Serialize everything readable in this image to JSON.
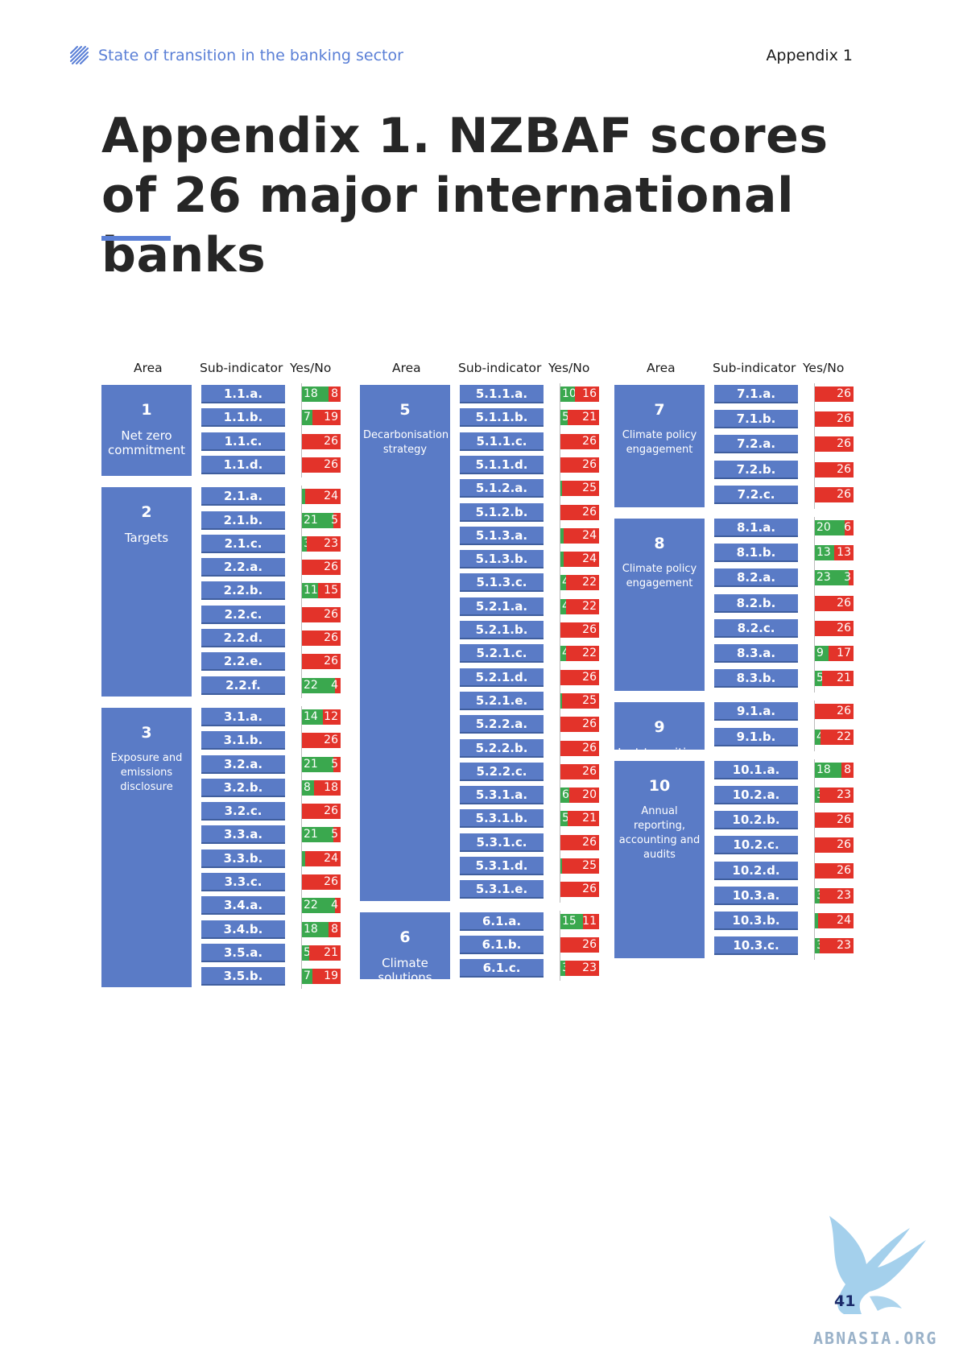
{
  "header": {
    "section_title": "State of transition in the banking sector",
    "appendix_label": "Appendix 1"
  },
  "title": "Appendix 1. NZBAF scores of 26 major international banks",
  "columns_heads": {
    "area": "Area",
    "sub": "Sub-indicator",
    "yn": "Yes/No"
  },
  "legend_colors": {
    "yes": "#3aa84e",
    "no": "#e3332a",
    "area": "#5a7bc6"
  },
  "areas": [
    {
      "num": "1",
      "name": "Net zero commitment",
      "rows": [
        {
          "id": "1.1.a.",
          "yes": 18,
          "no": 8
        },
        {
          "id": "1.1.b.",
          "yes": 7,
          "no": 19
        },
        {
          "id": "1.1.c.",
          "yes": 0,
          "no": 26
        },
        {
          "id": "1.1.d.",
          "yes": 0,
          "no": 26
        }
      ]
    },
    {
      "num": "2",
      "name": "Targets",
      "rows": [
        {
          "id": "2.1.a.",
          "yes": 2,
          "no": 24
        },
        {
          "id": "2.1.b.",
          "yes": 21,
          "no": 5
        },
        {
          "id": "2.1.c.",
          "yes": 3,
          "no": 23
        },
        {
          "id": "2.2.a.",
          "yes": 0,
          "no": 26
        },
        {
          "id": "2.2.b.",
          "yes": 11,
          "no": 15
        },
        {
          "id": "2.2.c.",
          "yes": 0,
          "no": 26
        },
        {
          "id": "2.2.d.",
          "yes": 0,
          "no": 26
        },
        {
          "id": "2.2.e.",
          "yes": 0,
          "no": 26
        },
        {
          "id": "2.2.f.",
          "yes": 22,
          "no": 4
        }
      ]
    },
    {
      "num": "3",
      "name": "Exposure and emissions disclosure",
      "rows": [
        {
          "id": "3.1.a.",
          "yes": 14,
          "no": 12
        },
        {
          "id": "3.1.b.",
          "yes": 0,
          "no": 26
        },
        {
          "id": "3.2.a.",
          "yes": 21,
          "no": 5
        },
        {
          "id": "3.2.b.",
          "yes": 8,
          "no": 18
        },
        {
          "id": "3.2.c.",
          "yes": 0,
          "no": 26
        },
        {
          "id": "3.3.a.",
          "yes": 21,
          "no": 5
        },
        {
          "id": "3.3.b.",
          "yes": 2,
          "no": 24
        },
        {
          "id": "3.3.c.",
          "yes": 0,
          "no": 26
        },
        {
          "id": "3.4.a.",
          "yes": 22,
          "no": 4
        },
        {
          "id": "3.4.b.",
          "yes": 18,
          "no": 8
        },
        {
          "id": "3.5.a.",
          "yes": 5,
          "no": 21
        },
        {
          "id": "3.5.b.",
          "yes": 7,
          "no": 19
        }
      ]
    },
    {
      "num": "5",
      "name": "Decarbonisation strategy",
      "rows": [
        {
          "id": "5.1.1.a.",
          "yes": 10,
          "no": 16
        },
        {
          "id": "5.1.1.b.",
          "yes": 5,
          "no": 21
        },
        {
          "id": "5.1.1.c.",
          "yes": 0,
          "no": 26
        },
        {
          "id": "5.1.1.d.",
          "yes": 0,
          "no": 26
        },
        {
          "id": "5.1.2.a.",
          "yes": 1,
          "no": 25
        },
        {
          "id": "5.1.2.b.",
          "yes": 0,
          "no": 26
        },
        {
          "id": "5.1.3.a.",
          "yes": 2,
          "no": 24
        },
        {
          "id": "5.1.3.b.",
          "yes": 2,
          "no": 24
        },
        {
          "id": "5.1.3.c.",
          "yes": 4,
          "no": 22
        },
        {
          "id": "5.2.1.a.",
          "yes": 4,
          "no": 22
        },
        {
          "id": "5.2.1.b.",
          "yes": 0,
          "no": 26
        },
        {
          "id": "5.2.1.c.",
          "yes": 4,
          "no": 22
        },
        {
          "id": "5.2.1.d.",
          "yes": 0,
          "no": 26
        },
        {
          "id": "5.2.1.e.",
          "yes": 1,
          "no": 25
        },
        {
          "id": "5.2.2.a.",
          "yes": 0,
          "no": 26
        },
        {
          "id": "5.2.2.b.",
          "yes": 0,
          "no": 26
        },
        {
          "id": "5.2.2.c.",
          "yes": 0,
          "no": 26
        },
        {
          "id": "5.3.1.a.",
          "yes": 6,
          "no": 20
        },
        {
          "id": "5.3.1.b.",
          "yes": 5,
          "no": 21
        },
        {
          "id": "5.3.1.c.",
          "yes": 0,
          "no": 26
        },
        {
          "id": "5.3.1.d.",
          "yes": 1,
          "no": 25
        },
        {
          "id": "5.3.1.e.",
          "yes": 0,
          "no": 26
        }
      ]
    },
    {
      "num": "6",
      "name": "Climate solutions",
      "rows": [
        {
          "id": "6.1.a.",
          "yes": 15,
          "no": 11
        },
        {
          "id": "6.1.b.",
          "yes": 0,
          "no": 26
        },
        {
          "id": "6.1.c.",
          "yes": 3,
          "no": 23
        }
      ]
    },
    {
      "num": "7",
      "name": "Climate policy engagement",
      "rows": [
        {
          "id": "7.1.a.",
          "yes": 0,
          "no": 26
        },
        {
          "id": "7.1.b.",
          "yes": 0,
          "no": 26
        },
        {
          "id": "7.2.a.",
          "yes": 0,
          "no": 26
        },
        {
          "id": "7.2.b.",
          "yes": 0,
          "no": 26
        },
        {
          "id": "7.2.c.",
          "yes": 0,
          "no": 26
        }
      ]
    },
    {
      "num": "8",
      "name": "Climate policy engagement",
      "rows": [
        {
          "id": "8.1.a.",
          "yes": 20,
          "no": 6
        },
        {
          "id": "8.1.b.",
          "yes": 13,
          "no": 13
        },
        {
          "id": "8.2.a.",
          "yes": 23,
          "no": 3
        },
        {
          "id": "8.2.b.",
          "yes": 0,
          "no": 26
        },
        {
          "id": "8.2.c.",
          "yes": 0,
          "no": 26
        },
        {
          "id": "8.3.a.",
          "yes": 9,
          "no": 17
        },
        {
          "id": "8.3.b.",
          "yes": 5,
          "no": 21
        }
      ]
    },
    {
      "num": "9",
      "name": "Just transition",
      "rows": [
        {
          "id": "9.1.a.",
          "yes": 0,
          "no": 26
        },
        {
          "id": "9.1.b.",
          "yes": 4,
          "no": 22
        }
      ]
    },
    {
      "num": "10",
      "name": "Annual reporting, accounting and audits",
      "rows": [
        {
          "id": "10.1.a.",
          "yes": 18,
          "no": 8
        },
        {
          "id": "10.2.a.",
          "yes": 3,
          "no": 23
        },
        {
          "id": "10.2.b.",
          "yes": 0,
          "no": 26
        },
        {
          "id": "10.2.c.",
          "yes": 0,
          "no": 26
        },
        {
          "id": "10.2.d.",
          "yes": 0,
          "no": 26
        },
        {
          "id": "10.3.a.",
          "yes": 3,
          "no": 23
        },
        {
          "id": "10.3.b.",
          "yes": 2,
          "no": 24
        },
        {
          "id": "10.3.c.",
          "yes": 3,
          "no": 23
        }
      ]
    }
  ],
  "footer": {
    "page_number": "41",
    "watermark": "ABNASIA.ORG"
  }
}
